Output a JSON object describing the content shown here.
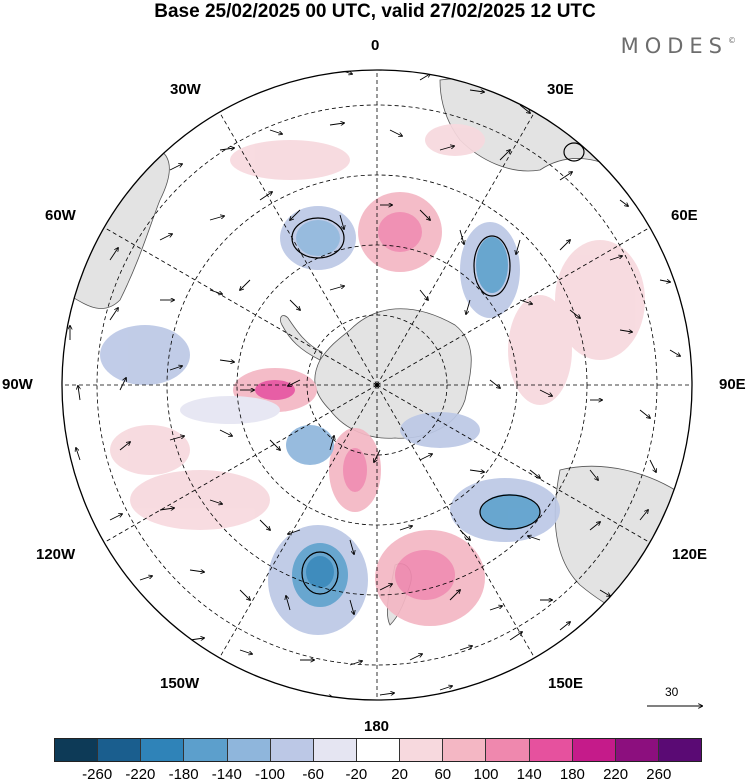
{
  "title": "Base 25/02/2025 00 UTC, valid 27/02/2025 12 UTC",
  "brand": "MODES",
  "brand_mark": "©",
  "longitude_labels": {
    "lon_0": "0",
    "lon_30e": "30E",
    "lon_60e": "60E",
    "lon_90e": "90E",
    "lon_120e": "120E",
    "lon_150e": "150E",
    "lon_180": "180",
    "lon_150w": "150W",
    "lon_120w": "120W",
    "lon_90w": "90W",
    "lon_60w": "60W",
    "lon_30w": "30W"
  },
  "projection": "south polar stereographic",
  "vector_reference": {
    "label": "30"
  },
  "colorbar": {
    "ticks": [
      "-260",
      "-220",
      "-180",
      "-140",
      "-100",
      "-60",
      "-20",
      "20",
      "60",
      "100",
      "140",
      "180",
      "220",
      "260"
    ],
    "colors": [
      "#0d3a57",
      "#1a5e8e",
      "#2f83b8",
      "#5c9fcc",
      "#8fb6dc",
      "#bcc8e6",
      "#e5e5f2",
      "#ffffff",
      "#f7d9de",
      "#f4b7c4",
      "#ef88ae",
      "#e6519e",
      "#c51b8a",
      "#8c0f7e",
      "#5a0a74"
    ]
  },
  "colors": {
    "land": "#e3e3e3",
    "outline": "#000000",
    "graticule": "#000000"
  }
}
